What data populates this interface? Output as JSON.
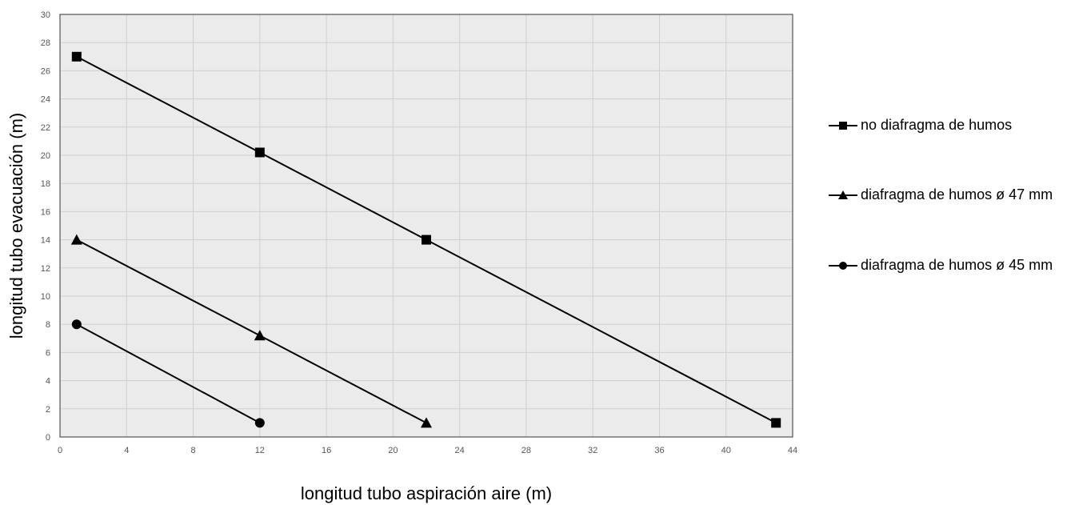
{
  "chart_data": {
    "type": "line",
    "title": "",
    "xlabel": "longitud tubo aspiración aire (m)",
    "ylabel": "longitud tubo evacuación (m)",
    "xlim": [
      0,
      44
    ],
    "ylim": [
      0,
      30
    ],
    "xticks": [
      0,
      4,
      8,
      12,
      16,
      20,
      24,
      28,
      32,
      36,
      40,
      44
    ],
    "yticks": [
      0,
      2,
      4,
      6,
      8,
      10,
      12,
      14,
      16,
      18,
      20,
      22,
      24,
      26,
      28,
      30
    ],
    "grid": true,
    "legend_position": "right",
    "plot_background": "#ebebeb",
    "series": [
      {
        "name": "no diafragma de humos",
        "marker": "square",
        "color": "#000000",
        "x": [
          1,
          12,
          22,
          43
        ],
        "y": [
          27,
          20.2,
          14,
          1
        ]
      },
      {
        "name": "diafragma de humos ø 47 mm",
        "marker": "triangle",
        "color": "#000000",
        "x": [
          1,
          12,
          22
        ],
        "y": [
          14,
          7.2,
          1
        ]
      },
      {
        "name": "diafragma de humos ø 45 mm",
        "marker": "circle",
        "color": "#000000",
        "x": [
          1,
          12
        ],
        "y": [
          8,
          1
        ]
      }
    ]
  }
}
